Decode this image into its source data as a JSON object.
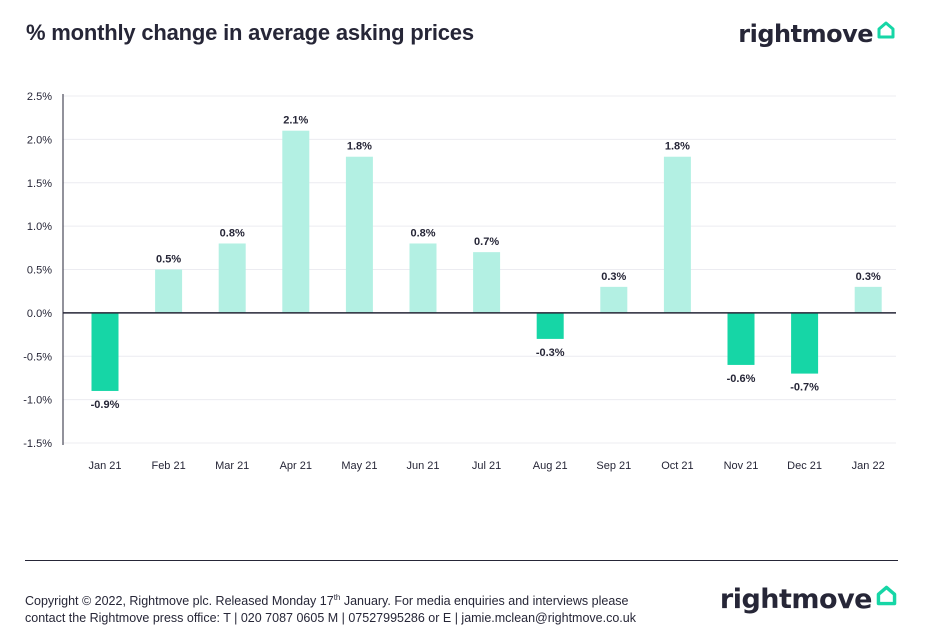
{
  "header": {
    "title": "% monthly change in average asking prices",
    "logo_text": "rightmove"
  },
  "footer": {
    "line1_pre": "Copyright © 2022, Rightmove plc. Released Monday 17",
    "line1_sup": "th",
    "line1_post": " January. For media enquiries and interviews please",
    "line2": "contact the Rightmove press office: T | 020 7087 0605 M | 07527995286 or E | jamie.mclean@rightmove.co.uk",
    "logo_text": "rightmove"
  },
  "colors": {
    "positive_bar": "#b3f0e3",
    "negative_bar": "#16d6a6",
    "brand_icon": "#16d6a6",
    "text": "#262637"
  },
  "chart_data": {
    "type": "bar",
    "title": "% monthly change in average asking prices",
    "categories": [
      "Jan 21",
      "Feb 21",
      "Mar 21",
      "Apr 21",
      "May 21",
      "Jun 21",
      "Jul 21",
      "Aug 21",
      "Sep 21",
      "Oct 21",
      "Nov 21",
      "Dec 21",
      "Jan 22"
    ],
    "values": [
      -0.9,
      0.5,
      0.8,
      2.1,
      1.8,
      0.8,
      0.7,
      -0.3,
      0.3,
      1.8,
      -0.6,
      -0.7,
      0.3
    ],
    "labels": [
      "-0.9%",
      "0.5%",
      "0.8%",
      "2.1%",
      "1.8%",
      "0.8%",
      "0.7%",
      "-0.3%",
      "0.3%",
      "1.8%",
      "-0.6%",
      "-0.7%",
      "0.3%"
    ],
    "yticks": [
      2.5,
      2.0,
      1.5,
      1.0,
      0.5,
      0.0,
      -0.5,
      -1.0,
      -1.5
    ],
    "ytick_labels": [
      "2.5%",
      "2.0%",
      "1.5%",
      "1.0%",
      "0.5%",
      "0.0%",
      "-0.5%",
      "-1.0%",
      "-1.5%"
    ],
    "ylim": [
      -1.5,
      2.5
    ],
    "xlabel": "",
    "ylabel": "",
    "grid": true,
    "legend": "none"
  }
}
